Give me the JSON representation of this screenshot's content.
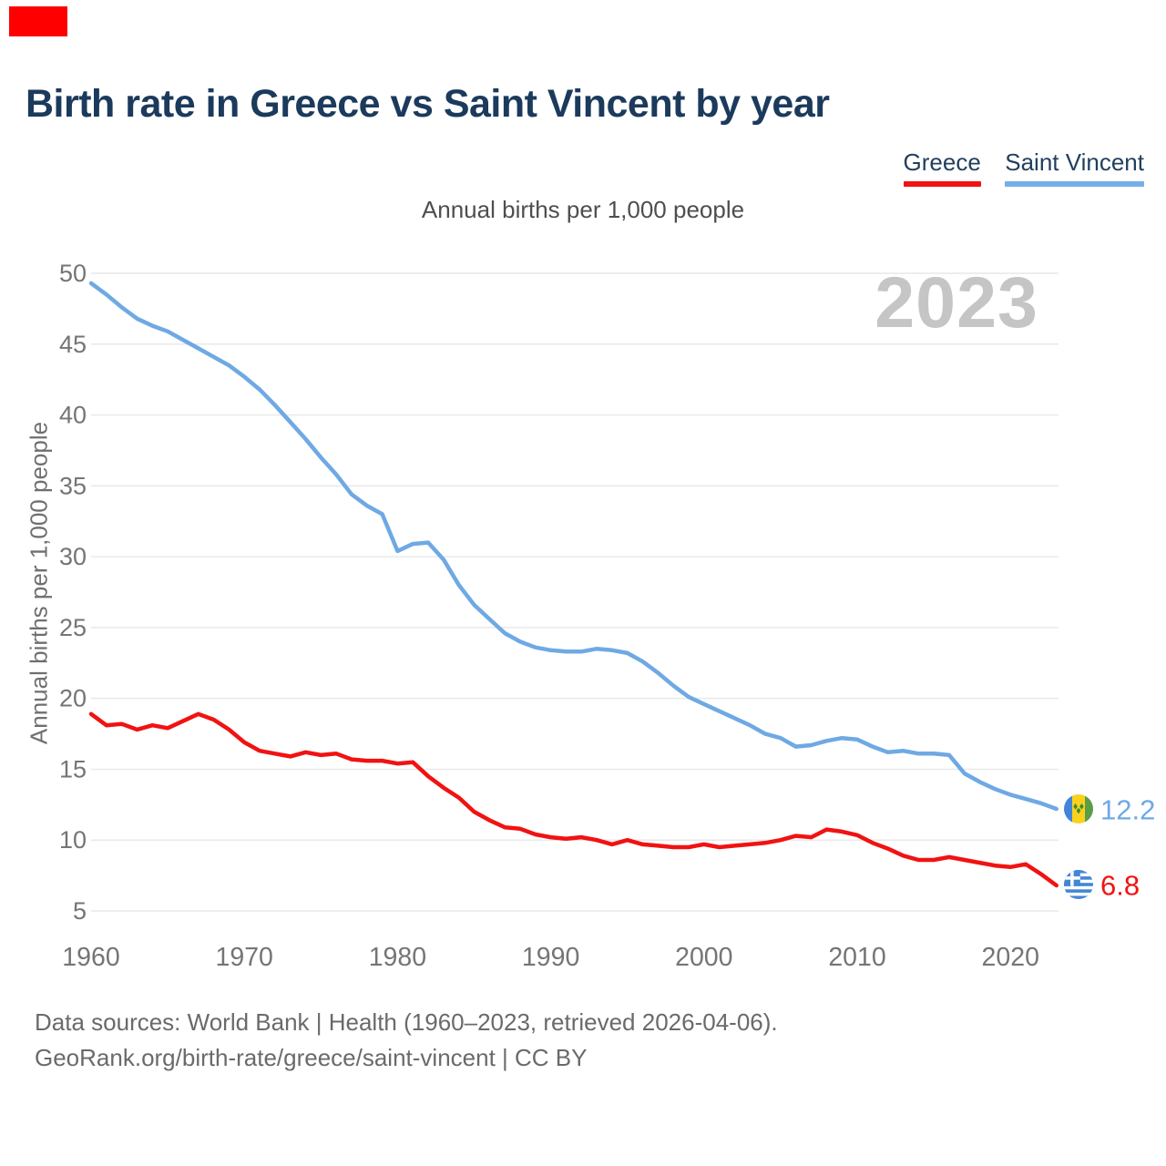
{
  "header": {
    "title": "Birth rate in Greece vs Saint Vincent by year"
  },
  "legend": [
    {
      "label": "Greece",
      "color": "#f11212"
    },
    {
      "label": "Saint Vincent",
      "color": "#74b0e8"
    }
  ],
  "subtitle": "Annual births per 1,000 people",
  "watermark": "2023",
  "top_left_marker": {
    "color": "#fe0000"
  },
  "axis_colors": {
    "tick_text": "#757575",
    "gridline": "#e9e9e9"
  },
  "chart_data": {
    "type": "line",
    "title": "Annual births per 1,000 people",
    "xlabel": "",
    "ylabel": "Annual births per 1,000 people",
    "xlim": [
      1960,
      2023
    ],
    "ylim": [
      5,
      50
    ],
    "grid": true,
    "legend_position": "top-right",
    "x_ticks": [
      1960,
      1970,
      1980,
      1990,
      2000,
      2010,
      2020
    ],
    "y_ticks": [
      5,
      10,
      15,
      20,
      25,
      30,
      35,
      40,
      45,
      50
    ],
    "years": [
      1960,
      1961,
      1962,
      1963,
      1964,
      1965,
      1966,
      1967,
      1968,
      1969,
      1970,
      1971,
      1972,
      1973,
      1974,
      1975,
      1976,
      1977,
      1978,
      1979,
      1980,
      1981,
      1982,
      1983,
      1984,
      1985,
      1986,
      1987,
      1988,
      1989,
      1990,
      1991,
      1992,
      1993,
      1994,
      1995,
      1996,
      1997,
      1998,
      1999,
      2000,
      2001,
      2002,
      2003,
      2004,
      2005,
      2006,
      2007,
      2008,
      2009,
      2010,
      2011,
      2012,
      2013,
      2014,
      2015,
      2016,
      2017,
      2018,
      2019,
      2020,
      2021,
      2022,
      2023
    ],
    "series": [
      {
        "name": "Greece",
        "color": "#f11212",
        "end_label": "6.8",
        "values": [
          18.9,
          18.1,
          18.2,
          17.8,
          18.1,
          17.9,
          18.4,
          18.9,
          18.5,
          17.8,
          16.9,
          16.3,
          16.1,
          15.9,
          16.2,
          16.0,
          16.1,
          15.7,
          15.6,
          15.6,
          15.4,
          15.5,
          14.5,
          13.7,
          13.0,
          12.0,
          11.4,
          10.9,
          10.8,
          10.4,
          10.2,
          10.1,
          10.2,
          10.0,
          9.7,
          10.0,
          9.7,
          9.6,
          9.5,
          9.5,
          9.7,
          9.5,
          9.6,
          9.7,
          9.8,
          10.0,
          10.3,
          10.2,
          10.75,
          10.6,
          10.35,
          9.8,
          9.4,
          8.9,
          8.6,
          8.6,
          8.8,
          8.6,
          8.4,
          8.2,
          8.1,
          8.3,
          7.6,
          6.8
        ]
      },
      {
        "name": "Saint Vincent",
        "color": "#6fa9e4",
        "end_label": "12.2",
        "values": [
          49.3,
          48.5,
          47.6,
          46.8,
          46.3,
          45.9,
          45.3,
          44.7,
          44.1,
          43.5,
          42.7,
          41.8,
          40.7,
          39.5,
          38.3,
          37.0,
          35.8,
          34.4,
          33.6,
          33.0,
          30.4,
          30.9,
          31.0,
          29.8,
          28.0,
          26.6,
          25.6,
          24.6,
          24.0,
          23.6,
          23.4,
          23.3,
          23.3,
          23.5,
          23.4,
          23.2,
          22.6,
          21.8,
          20.9,
          20.1,
          19.6,
          19.1,
          18.6,
          18.1,
          17.5,
          17.2,
          16.6,
          16.7,
          17.0,
          17.2,
          17.1,
          16.6,
          16.2,
          16.3,
          16.1,
          16.1,
          16.0,
          14.7,
          14.1,
          13.6,
          13.2,
          12.9,
          12.6,
          12.2
        ]
      }
    ]
  },
  "footer": {
    "line1": "Data sources: World Bank | Health (1960–2023, retrieved 2026-04-06).",
    "line2": "GeoRank.org/birth-rate/greece/saint-vincent | CC BY"
  }
}
